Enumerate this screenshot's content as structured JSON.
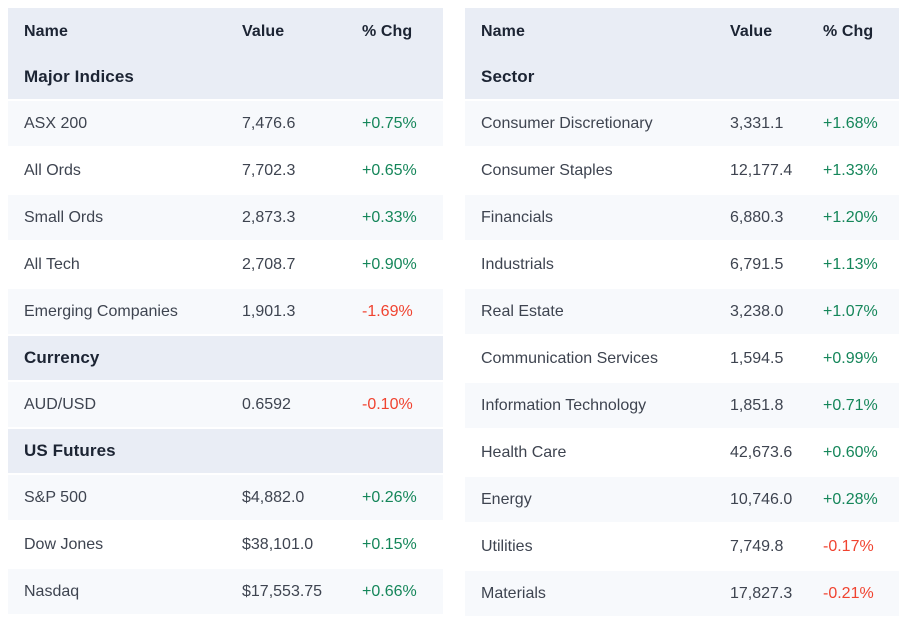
{
  "colors": {
    "positive": "#15865a",
    "negative": "#f04330",
    "header_bg": "#e9edf5",
    "row_alt_bg": "#f7f9fc",
    "heading_text": "#1c2433",
    "body_text": "#3e4450"
  },
  "chart_data": [
    {
      "type": "table",
      "id": "market-overview",
      "columns": [
        "Name",
        "Value",
        "% Chg"
      ],
      "sections": [
        {
          "title": "Major Indices",
          "rows": [
            {
              "name": "ASX 200",
              "value": "7,476.6",
              "chg": "+0.75%"
            },
            {
              "name": "All Ords",
              "value": "7,702.3",
              "chg": "+0.65%"
            },
            {
              "name": "Small Ords",
              "value": "2,873.3",
              "chg": "+0.33%"
            },
            {
              "name": "All Tech",
              "value": "2,708.7",
              "chg": "+0.90%"
            },
            {
              "name": "Emerging Companies",
              "value": "1,901.3",
              "chg": "-1.69%"
            }
          ]
        },
        {
          "title": "Currency",
          "rows": [
            {
              "name": "AUD/USD",
              "value": "0.6592",
              "chg": "-0.10%"
            }
          ]
        },
        {
          "title": "US Futures",
          "rows": [
            {
              "name": "S&P 500",
              "value": "$4,882.0",
              "chg": "+0.26%"
            },
            {
              "name": "Dow Jones",
              "value": "$38,101.0",
              "chg": "+0.15%"
            },
            {
              "name": "Nasdaq",
              "value": "$17,553.75",
              "chg": "+0.66%"
            }
          ]
        }
      ]
    },
    {
      "type": "table",
      "id": "sectors",
      "columns": [
        "Name",
        "Value",
        "% Chg"
      ],
      "sections": [
        {
          "title": "Sector",
          "rows": [
            {
              "name": "Consumer Discretionary",
              "value": "3,331.1",
              "chg": "+1.68%"
            },
            {
              "name": "Consumer Staples",
              "value": "12,177.4",
              "chg": "+1.33%"
            },
            {
              "name": "Financials",
              "value": "6,880.3",
              "chg": "+1.20%"
            },
            {
              "name": "Industrials",
              "value": "6,791.5",
              "chg": "+1.13%"
            },
            {
              "name": "Real Estate",
              "value": "3,238.0",
              "chg": "+1.07%"
            },
            {
              "name": "Communication Services",
              "value": "1,594.5",
              "chg": "+0.99%"
            },
            {
              "name": "Information Technology",
              "value": "1,851.8",
              "chg": "+0.71%"
            },
            {
              "name": "Health Care",
              "value": "42,673.6",
              "chg": "+0.60%"
            },
            {
              "name": "Energy",
              "value": "10,746.0",
              "chg": "+0.28%"
            },
            {
              "name": "Utilities",
              "value": "7,749.8",
              "chg": "-0.17%"
            },
            {
              "name": "Materials",
              "value": "17,827.3",
              "chg": "-0.21%"
            }
          ]
        }
      ]
    }
  ]
}
